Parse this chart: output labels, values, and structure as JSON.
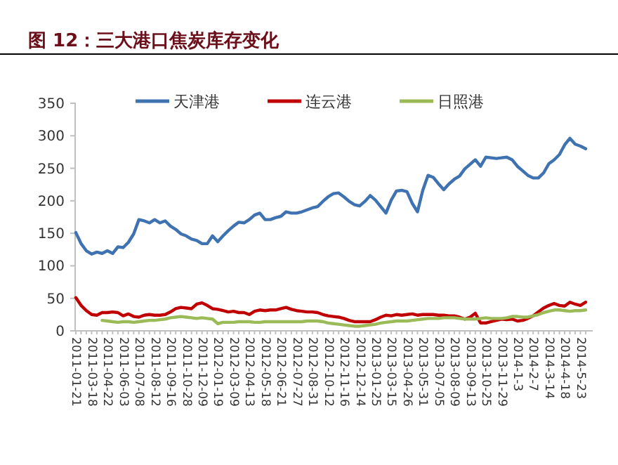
{
  "chart_data": {
    "type": "line",
    "title": "图 12：三大港口焦炭库存变化",
    "legend": "top",
    "ylim": [
      0,
      350
    ],
    "yticks": [
      0,
      50,
      100,
      150,
      200,
      250,
      300,
      350
    ],
    "categories": [
      "2011-01-21",
      null,
      null,
      "2011-03-18",
      null,
      null,
      "2011-04-22",
      null,
      null,
      "2011-06-03",
      null,
      null,
      "2011-07-08",
      null,
      null,
      "2011-08-12",
      null,
      null,
      "2011-09-16",
      null,
      null,
      "2011-10-28",
      null,
      null,
      "2011-12-09",
      null,
      null,
      "2012-01-19",
      null,
      null,
      "2012-03-09",
      null,
      null,
      "2012-04-13",
      null,
      null,
      "2012-05-18",
      null,
      null,
      "2012-06-21",
      null,
      null,
      "2012-07-27",
      null,
      null,
      "2012-08-31",
      null,
      null,
      "2012-10-12",
      null,
      null,
      "2012-11-16",
      null,
      null,
      "2012-12-14",
      null,
      null,
      "2013-01-25",
      null,
      null,
      "2013-03-15",
      null,
      null,
      "2013-04-26",
      null,
      null,
      "2013-05-31",
      null,
      null,
      "2013-07-05",
      null,
      null,
      "2013-08-09",
      null,
      null,
      "2013-09-13",
      null,
      null,
      "2013-10-25",
      null,
      null,
      "2013-11-29",
      null,
      null,
      "2014-1-3",
      null,
      null,
      "2014-2-7",
      null,
      null,
      "2014-3-14",
      null,
      null,
      "2014-4-18",
      null,
      null,
      "2014-5-23",
      null
    ],
    "series": [
      {
        "name": "天津港",
        "color": "#3f72b0",
        "values": [
          150,
          133,
          122,
          117,
          120,
          118,
          122,
          118,
          128,
          127,
          135,
          148,
          170,
          168,
          165,
          170,
          165,
          168,
          160,
          155,
          148,
          145,
          140,
          138,
          133,
          133,
          145,
          136,
          145,
          153,
          160,
          166,
          165,
          170,
          177,
          180,
          170,
          170,
          173,
          175,
          182,
          180,
          180,
          182,
          185,
          188,
          190,
          198,
          205,
          210,
          211,
          205,
          198,
          193,
          191,
          198,
          207,
          200,
          190,
          180,
          200,
          214,
          215,
          213,
          195,
          182,
          215,
          238,
          235,
          225,
          216,
          225,
          232,
          237,
          248,
          255,
          262,
          252,
          266,
          265,
          264,
          265,
          266,
          262,
          252,
          245,
          238,
          234,
          234,
          242,
          256,
          262,
          270,
          285,
          295,
          286,
          283,
          279
        ]
      },
      {
        "name": "连云港",
        "color": "#c00000",
        "values": [
          50,
          38,
          30,
          24,
          23,
          27,
          27,
          28,
          27,
          22,
          25,
          21,
          20,
          23,
          24,
          23,
          23,
          24,
          28,
          33,
          35,
          34,
          33,
          40,
          42,
          38,
          33,
          32,
          30,
          28,
          29,
          27,
          27,
          24,
          29,
          31,
          30,
          31,
          31,
          33,
          35,
          32,
          30,
          29,
          28,
          28,
          27,
          24,
          22,
          21,
          20,
          18,
          15,
          13,
          13,
          13,
          13,
          16,
          20,
          23,
          22,
          24,
          23,
          24,
          25,
          23,
          24,
          24,
          24,
          23,
          23,
          22,
          22,
          20,
          17,
          20,
          26,
          11,
          11,
          13,
          15,
          17,
          16,
          17,
          14,
          15,
          18,
          22,
          28,
          34,
          38,
          41,
          38,
          37,
          43,
          40,
          38,
          43
        ]
      },
      {
        "name": "日照港",
        "color": "#9bbb59",
        "values": [
          null,
          null,
          null,
          null,
          null,
          15,
          14,
          13,
          12,
          13,
          13,
          12,
          13,
          14,
          15,
          15,
          16,
          17,
          19,
          20,
          21,
          20,
          19,
          18,
          19,
          18,
          17,
          10,
          12,
          12,
          12,
          13,
          13,
          13,
          12,
          12,
          13,
          13,
          13,
          13,
          13,
          13,
          13,
          13,
          14,
          14,
          14,
          13,
          11,
          10,
          9,
          8,
          7,
          6,
          6,
          7,
          8,
          9,
          11,
          12,
          13,
          14,
          14,
          14,
          15,
          16,
          17,
          18,
          18,
          18,
          19,
          19,
          19,
          18,
          17,
          17,
          17,
          18,
          19,
          18,
          18,
          18,
          19,
          21,
          21,
          20,
          20,
          22,
          24,
          27,
          29,
          31,
          31,
          30,
          29,
          30,
          30,
          31
        ]
      }
    ]
  }
}
